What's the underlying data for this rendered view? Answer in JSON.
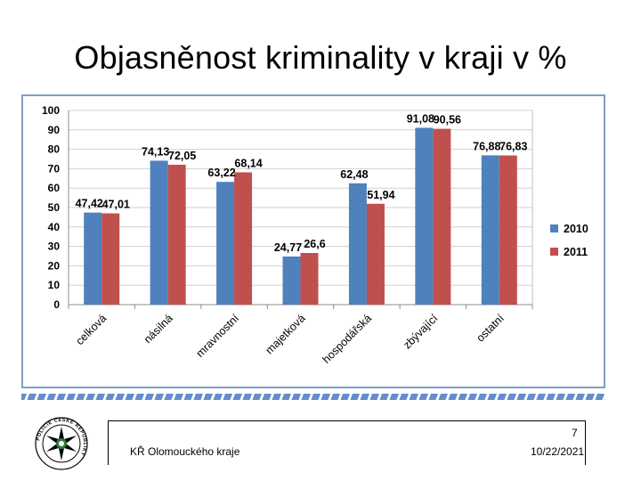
{
  "slide": {
    "title": "Objasněnost kriminality v kraji v %",
    "page_number": "7",
    "footer_left": "KŘ Olomouckého kraje",
    "footer_date": "10/22/2021",
    "logo_text": "POLICIE ČESKÉ REPUBLIKY"
  },
  "colors": {
    "series_2010": "#4f81bd",
    "series_2011": "#c0504d",
    "frame_border": "#7f9fc8",
    "grid": "#d0d0d0"
  },
  "chart_data": {
    "type": "bar",
    "title": "",
    "xlabel": "",
    "ylabel": "",
    "ylim": [
      0,
      100
    ],
    "yticks": [
      0,
      10,
      20,
      30,
      40,
      50,
      60,
      70,
      80,
      90,
      100
    ],
    "categories": [
      "celková",
      "násilná",
      "mravnostní",
      "majetková",
      "hospodářská",
      "zbývající",
      "ostatní"
    ],
    "series": [
      {
        "name": "2010",
        "values": [
          47.42,
          74.13,
          63.22,
          24.77,
          62.48,
          91.08,
          76.88
        ],
        "labels": [
          "47,42",
          "74,13",
          "63,22",
          "24,77",
          "62,48",
          "91,08",
          "76,88"
        ]
      },
      {
        "name": "2011",
        "values": [
          47.01,
          72.05,
          68.14,
          26.6,
          51.94,
          90.56,
          76.83
        ],
        "labels": [
          "47,01",
          "72,05",
          "68,14",
          "26,6",
          "51,94",
          "90,56",
          "76,83"
        ]
      }
    ],
    "legend_position": "right",
    "grid": true
  }
}
